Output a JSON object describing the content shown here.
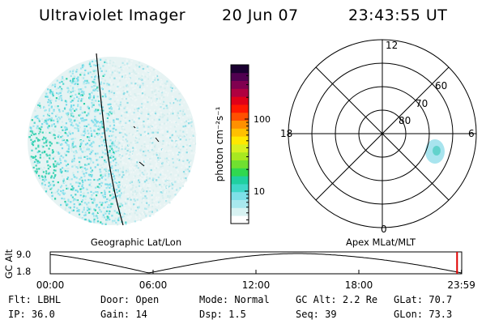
{
  "header": {
    "instrument": "Ultraviolet Imager",
    "date": "20 Jun 07",
    "time": "23:43:55 UT"
  },
  "image_panel": {
    "caption": "Geographic Lat/Lon"
  },
  "colorbar": {
    "unit_label": "photon cm⁻²s⁻¹",
    "ticks": [
      {
        "value": 10,
        "label": "10"
      },
      {
        "value": 100,
        "label": "100"
      }
    ],
    "colors": [
      "#ffffff",
      "#d8f2f2",
      "#a8e8ee",
      "#7ee0e8",
      "#40d8c8",
      "#20d0a0",
      "#30d850",
      "#70e030",
      "#a8e820",
      "#d8f020",
      "#ffe800",
      "#ffc000",
      "#ff9000",
      "#ff5000",
      "#ff1800",
      "#e00018",
      "#b00040",
      "#800050",
      "#500050",
      "#1a0030"
    ]
  },
  "polar_plot": {
    "caption": "Apex MLat/MLT",
    "mlt_labels": {
      "top": "12",
      "bottom": "0",
      "left": "18",
      "right": "6"
    },
    "lat_labels": [
      {
        "value": 60,
        "label": "60"
      },
      {
        "value": 70,
        "label": "70"
      },
      {
        "value": 80,
        "label": "80"
      }
    ]
  },
  "altitude_plot": {
    "ylabel": "GC Alt",
    "yticks": [
      {
        "value": 9.0,
        "label": "9.0"
      },
      {
        "value": 1.8,
        "label": "1.8"
      }
    ],
    "xticks": [
      {
        "hour": 0,
        "label": "00:00"
      },
      {
        "hour": 6,
        "label": "06:00"
      },
      {
        "hour": 12,
        "label": "12:00"
      },
      {
        "hour": 18,
        "label": "18:00"
      },
      {
        "hour": 23.983,
        "label": "23:59"
      }
    ],
    "current_hour": 23.73
  },
  "info": {
    "row1": [
      {
        "label": "Flt:",
        "value": "LBHL"
      },
      {
        "label": "Door:",
        "value": "Open"
      },
      {
        "label": "Mode:",
        "value": "Normal"
      },
      {
        "label": "GC Alt:",
        "value": "2.2 Re"
      },
      {
        "label": "GLat:",
        "value": "70.7"
      }
    ],
    "row2": [
      {
        "label": "IP:",
        "value": "36.0"
      },
      {
        "label": "Gain:",
        "value": "14"
      },
      {
        "label": "Dsp:",
        "value": "1.5"
      },
      {
        "label": "Seq:",
        "value": "39"
      },
      {
        "label": "GLon:",
        "value": "73.3"
      }
    ]
  }
}
